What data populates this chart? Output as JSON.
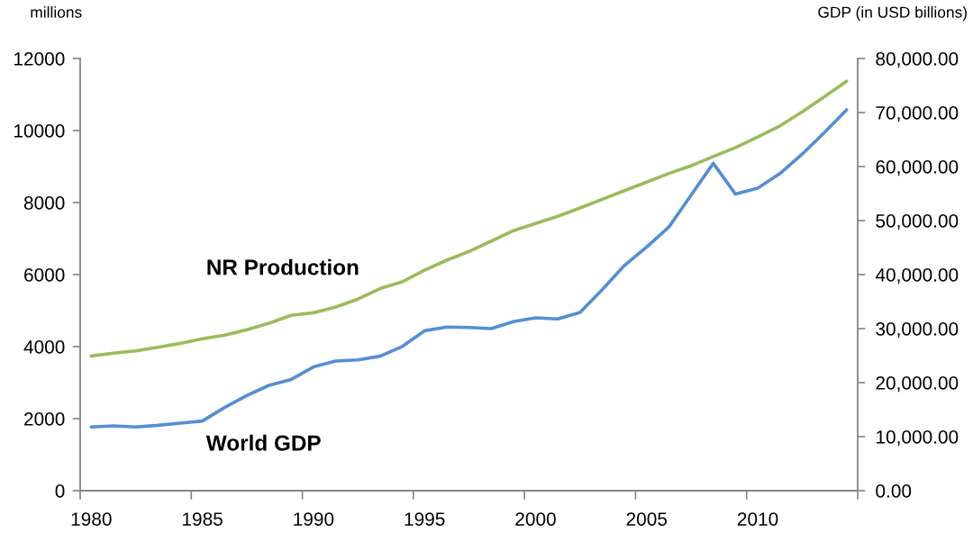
{
  "chart_data": {
    "type": "line",
    "ylabel": "millions",
    "y2label": "GDP (in USD billions)",
    "categories": [
      "1980",
      null,
      null,
      null,
      null,
      "1985",
      null,
      null,
      null,
      null,
      "1990",
      null,
      null,
      null,
      null,
      "1995",
      null,
      null,
      null,
      null,
      "2000",
      null,
      null,
      null,
      null,
      "2005",
      null,
      null,
      null,
      null,
      "2010",
      null,
      null,
      null,
      null
    ],
    "series": [
      {
        "name": "NR Production",
        "color": "#9bbb59",
        "values": [
          3740,
          3820,
          3880,
          3980,
          4090,
          4220,
          4320,
          4470,
          4650,
          4870,
          4940,
          5100,
          5320,
          5610,
          5800,
          6120,
          6400,
          6640,
          6930,
          7220,
          7420,
          7620,
          7850,
          8090,
          8330,
          8570,
          8810,
          9020,
          9280,
          9530,
          9820,
          10130,
          10520,
          10940,
          11370
        ]
      },
      {
        "name": "World GDP",
        "color": "#558ed5",
        "axis": "y2",
        "values": [
          11800,
          12000,
          11800,
          12100,
          12500,
          12900,
          15400,
          17600,
          19500,
          20600,
          22900,
          24000,
          24200,
          24900,
          26700,
          29600,
          30300,
          30200,
          30000,
          31300,
          32000,
          31800,
          33000,
          37200,
          41700,
          45100,
          48800,
          54700,
          60600,
          54900,
          56000,
          58700,
          62300,
          66300,
          70500
        ]
      }
    ],
    "ylim": [
      0,
      12000
    ],
    "yticks": [
      0,
      2000,
      4000,
      6000,
      8000,
      10000,
      12000
    ],
    "y2lim": [
      0,
      80000
    ],
    "y2ticks": [
      {
        "value": 0,
        "label": "0.00"
      },
      {
        "value": 10000,
        "label": "10,000.00"
      },
      {
        "value": 20000,
        "label": "20,000.00"
      },
      {
        "value": 30000,
        "label": "30,000.00"
      },
      {
        "value": 40000,
        "label": "40,000.00"
      },
      {
        "value": 50000,
        "label": "50,000.00"
      },
      {
        "value": 60000,
        "label": "60,000.00"
      },
      {
        "value": 70000,
        "label": "70,000.00"
      },
      {
        "value": 80000,
        "label": "80,000.00"
      }
    ],
    "grid": false,
    "legend": false,
    "line_style": "solid"
  }
}
